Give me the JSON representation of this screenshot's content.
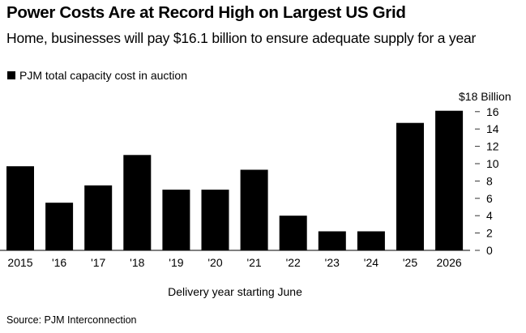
{
  "chart_data": {
    "type": "bar",
    "title": "Power Costs Are at Record High on Largest US Grid",
    "subtitle": "Home, businesses will pay $16.1 billion to ensure adequate supply for a year",
    "legend": [
      {
        "name": "PJM total capacity cost in auction",
        "color": "#000000"
      }
    ],
    "legend_placement": "top-left",
    "categories": [
      "2015",
      "'16",
      "'17",
      "'18",
      "'19",
      "'20",
      "'21",
      "'22",
      "'23",
      "'24",
      "'25",
      "2026"
    ],
    "series": [
      {
        "name": "PJM total capacity cost in auction",
        "values": [
          9.7,
          5.5,
          7.5,
          11.0,
          7.0,
          7.0,
          9.3,
          4.0,
          2.2,
          2.2,
          14.7,
          16.1
        ]
      }
    ],
    "xlabel": "Delivery year starting June",
    "ylabel": "",
    "y_unit_label": "$18 Billion",
    "yticks": [
      "0",
      "2",
      "4",
      "6",
      "8",
      "10",
      "12",
      "14",
      "16"
    ],
    "ylim": [
      0,
      18
    ],
    "y_axis_position": "right",
    "grid": false,
    "bar_color": "#000000"
  },
  "source": "Source: PJM Interconnection"
}
